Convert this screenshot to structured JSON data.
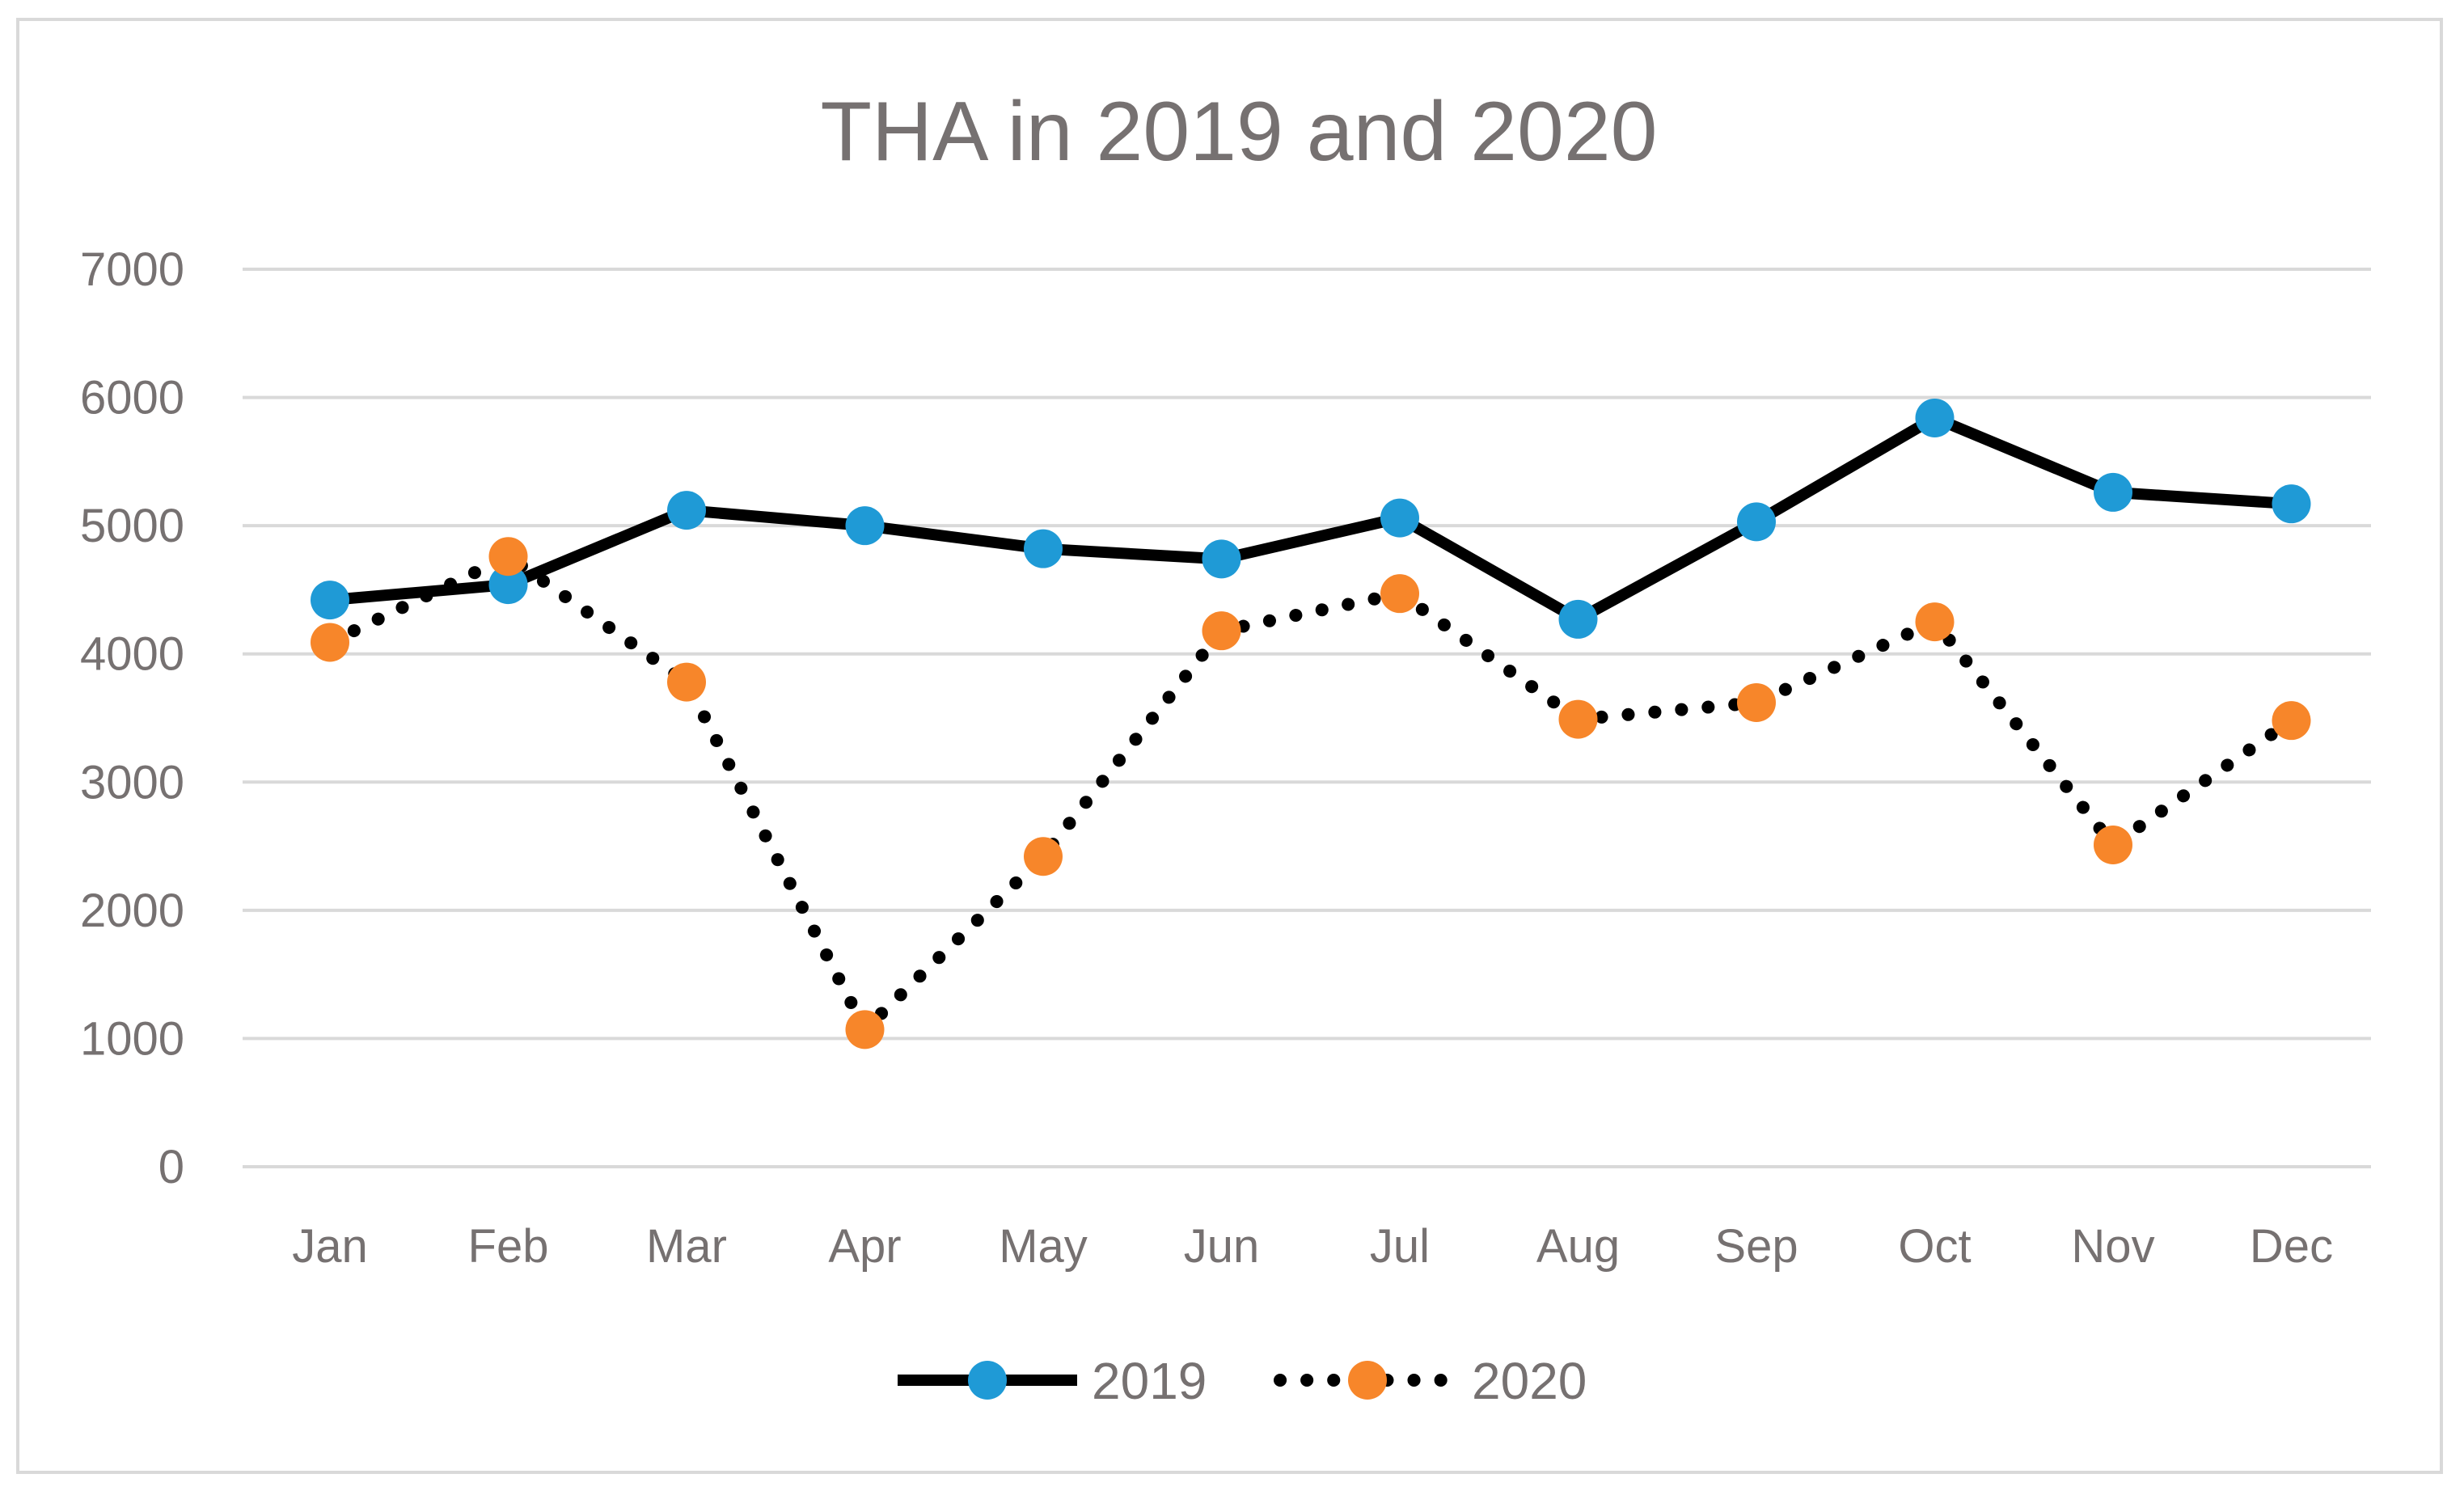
{
  "chart_data": {
    "type": "line",
    "title": "THA in 2019 and 2020",
    "xlabel": "",
    "ylabel": "",
    "categories": [
      "Jan",
      "Feb",
      "Mar",
      "Apr",
      "May",
      "Jun",
      "Jul",
      "Aug",
      "Sep",
      "Oct",
      "Nov",
      "Dec"
    ],
    "ylim": [
      0,
      7000
    ],
    "yticks": [
      "0",
      "1000",
      "2000",
      "3000",
      "4000",
      "5000",
      "6000",
      "7000"
    ],
    "grid": true,
    "legend_position": "bottom",
    "series": [
      {
        "name": "2019",
        "line_style": "solid",
        "line_color": "#000000",
        "marker_color": "#1f9ad6",
        "values": [
          4420,
          4540,
          5120,
          5000,
          4820,
          4740,
          5060,
          4270,
          5030,
          5840,
          5260,
          5170
        ]
      },
      {
        "name": "2020",
        "line_style": "dotted",
        "line_color": "#000000",
        "marker_color": "#f7862a",
        "values": [
          4090,
          4760,
          3780,
          1070,
          2420,
          4180,
          4470,
          3490,
          3620,
          4250,
          2510,
          3480
        ]
      }
    ]
  }
}
